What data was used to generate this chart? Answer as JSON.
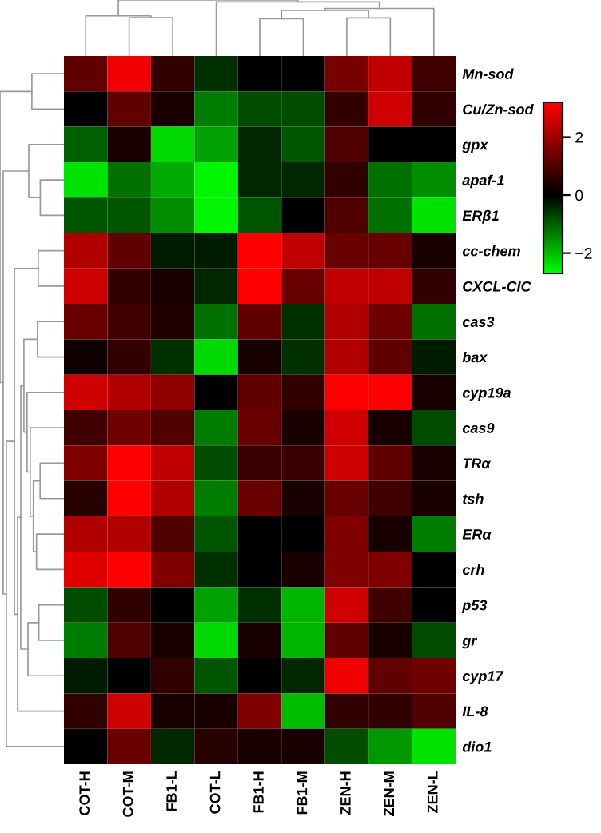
{
  "chart_data": {
    "type": "heatmap",
    "categories": [
      "COT-H",
      "COT-M",
      "FB1-L",
      "COT-L",
      "FB1-H",
      "FB1-M",
      "ZEN-H",
      "ZEN-M",
      "ZEN-L"
    ],
    "y_categories": [
      "Mn-sod",
      "Cu/Zn-sod",
      "gpx",
      "apaf-1",
      "ERβ1",
      "cc-chem",
      "CXCL-CIC",
      "cas3",
      "bax",
      "cyp19a",
      "cas9",
      "TRα",
      "tsh",
      "ERα",
      "crh",
      "p53",
      "gr",
      "cyp17",
      "IL-8",
      "dio1"
    ],
    "cells": [
      [
        1.2,
        3.0,
        0.6,
        -0.5,
        0,
        0,
        1.5,
        2.4,
        0.8
      ],
      [
        0,
        1.2,
        0.3,
        -1.3,
        -0.8,
        -0.8,
        0.6,
        2.6,
        0.6
      ],
      [
        -1.0,
        0.3,
        -2.3,
        -1.7,
        -0.4,
        -0.9,
        1.0,
        0,
        0
      ],
      [
        -2.4,
        -1.2,
        -1.8,
        -2.6,
        -0.4,
        -0.4,
        0.6,
        -1.2,
        -1.5
      ],
      [
        -0.9,
        -0.9,
        -1.5,
        -2.6,
        -0.9,
        0,
        1.0,
        -1.2,
        -2.4
      ],
      [
        2.2,
        1.2,
        -0.3,
        -0.3,
        3.2,
        2.4,
        1.3,
        1.3,
        0.3
      ],
      [
        2.6,
        0.6,
        0.3,
        -0.4,
        3.2,
        1.3,
        2.4,
        2.4,
        0.6
      ],
      [
        1.3,
        0.8,
        0.4,
        -1.2,
        1.2,
        -0.5,
        2.2,
        1.4,
        -1.2
      ],
      [
        0.2,
        0.6,
        -0.5,
        -2.3,
        0.3,
        -0.5,
        2.2,
        1.2,
        -0.3
      ],
      [
        2.6,
        2.2,
        1.8,
        0,
        1.2,
        0.6,
        3.2,
        3.2,
        0.3
      ],
      [
        0.8,
        1.4,
        1.0,
        -1.3,
        1.3,
        0.3,
        2.6,
        0.3,
        -0.8
      ],
      [
        1.6,
        3.2,
        2.4,
        -0.8,
        0.7,
        0.7,
        2.6,
        1.2,
        0.3
      ],
      [
        0.5,
        3.2,
        2.2,
        -1.3,
        1.3,
        0.3,
        1.3,
        0.8,
        0.3
      ],
      [
        2.2,
        2.2,
        1.0,
        -0.9,
        0,
        0,
        1.6,
        0.3,
        -1.3
      ],
      [
        2.8,
        3.2,
        1.6,
        -0.5,
        0,
        0.3,
        1.6,
        1.6,
        0
      ],
      [
        -0.8,
        0.6,
        0,
        -1.7,
        -0.5,
        -1.9,
        2.6,
        0.8,
        0
      ],
      [
        -1.3,
        1.0,
        0.3,
        -2.3,
        0.3,
        -1.9,
        1.2,
        0.3,
        -0.8
      ],
      [
        -0.3,
        0,
        0.6,
        -0.9,
        0,
        -0.4,
        3.0,
        1.2,
        1.4
      ],
      [
        0.6,
        2.6,
        0.3,
        0.3,
        1.6,
        -2.0,
        0.6,
        0.6,
        1.0
      ],
      [
        0,
        1.3,
        -0.4,
        0.5,
        0.3,
        0.3,
        -0.8,
        -1.6,
        -2.4
      ]
    ],
    "clim": [
      -2.7,
      3.2
    ],
    "cticks": [
      -2,
      0,
      2
    ]
  }
}
